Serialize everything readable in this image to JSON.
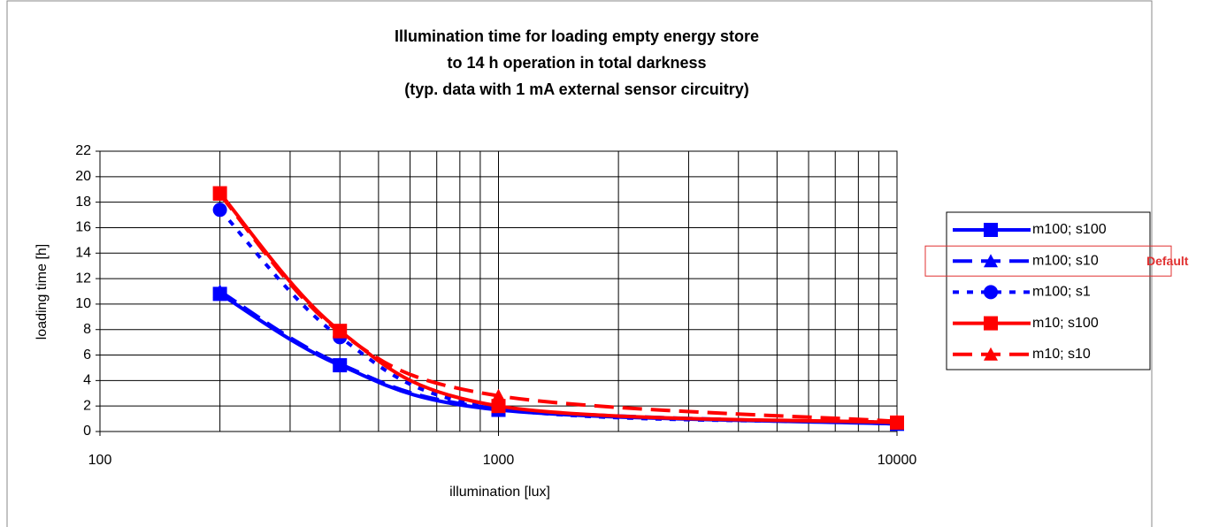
{
  "chart_data": {
    "type": "line",
    "title": [
      "Illumination time for loading empty energy store",
      "to 14 h operation in total darkness",
      "(typ. data with 1 mA external sensor circuitry)"
    ],
    "x_label": "illumination [lux]",
    "y_label": "loading time [h]",
    "x": [
      200,
      400,
      1000,
      10000
    ],
    "xscale": "log",
    "xlim": [
      100,
      10000
    ],
    "xticks": [
      100,
      1000,
      10000
    ],
    "xminor": [
      200,
      300,
      400,
      500,
      600,
      700,
      800,
      900,
      2000,
      3000,
      4000,
      5000,
      6000,
      7000,
      8000,
      9000
    ],
    "ylim": [
      0,
      22
    ],
    "yticks": [
      0,
      2,
      4,
      6,
      8,
      10,
      12,
      14,
      16,
      18,
      20,
      22
    ],
    "grid": true,
    "legend": "right",
    "series": [
      {
        "name": "m100; s100",
        "color": "#0000ff",
        "dash": "solid",
        "marker": "square",
        "values": [
          10.8,
          5.2,
          1.7,
          0.6
        ]
      },
      {
        "name": "m100; s10",
        "color": "#0000ff",
        "dash": "dash",
        "marker": "triangle",
        "values": [
          11.0,
          5.3,
          1.8,
          0.6
        ]
      },
      {
        "name": "m100; s1",
        "color": "#0000ff",
        "dash": "dot",
        "marker": "circle",
        "values": [
          17.4,
          7.4,
          1.8,
          0.7
        ]
      },
      {
        "name": "m10; s100",
        "color": "#ff0000",
        "dash": "solid",
        "marker": "square",
        "values": [
          18.7,
          7.9,
          2.0,
          0.7
        ]
      },
      {
        "name": "m10; s10",
        "color": "#ff0000",
        "dash": "dash",
        "marker": "triangle",
        "values": [
          18.6,
          7.8,
          2.8,
          0.8
        ]
      }
    ],
    "annotation": "Default",
    "annotation_series": 1
  }
}
